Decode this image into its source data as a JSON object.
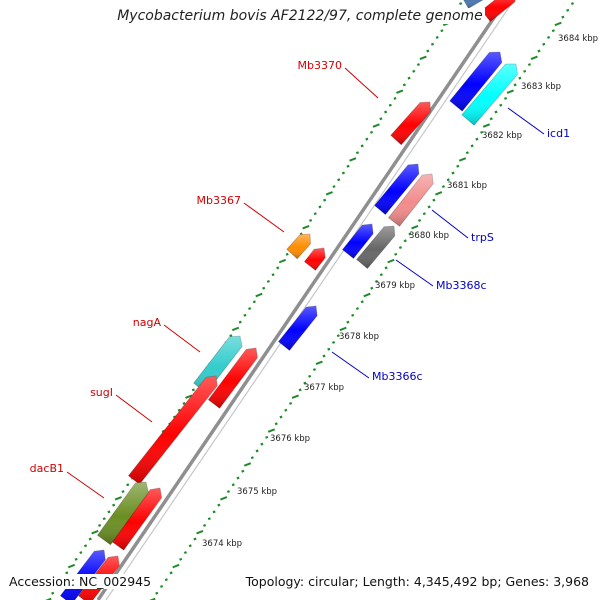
{
  "title": "Mycobacterium bovis AF2122/97, complete genome",
  "accession": "Accession: NC_002945",
  "topology": "Topology: circular; Length: 4,345,492 bp; Genes: 3,968",
  "colors": {
    "backbone": "#8f8f8f",
    "tick": "#1f8a2a",
    "label_red": "#d40000",
    "label_blue": "#0000c8"
  },
  "scale": {
    "unit": "kbp",
    "labels": [
      "3674 kbp",
      "3675 kbp",
      "3676 kbp",
      "3677 kbp",
      "3678 kbp",
      "3679 kbp",
      "3680 kbp",
      "3681 kbp",
      "3682 kbp",
      "3683 kbp",
      "3684 kbp"
    ]
  },
  "genes": [
    {
      "name": "Mb3370",
      "color": "#ff0000"
    },
    {
      "name": "Mb3367",
      "color": "#ff0000"
    },
    {
      "name": "nagA",
      "color": "#33cccc"
    },
    {
      "name": "sugI",
      "color": "#ff0000"
    },
    {
      "name": "dacB1",
      "color": "#6b8e23"
    },
    {
      "name": "icd1",
      "color": "#00ffff"
    },
    {
      "name": "trpS",
      "color": "#f28b8b"
    },
    {
      "name": "Mb3368c",
      "color": "#666666"
    },
    {
      "name": "Mb3366c",
      "color": "#0000ff"
    }
  ],
  "unlabeled_feature_colors": [
    "#0000ff",
    "#ff8c00",
    "#4a78b0"
  ]
}
